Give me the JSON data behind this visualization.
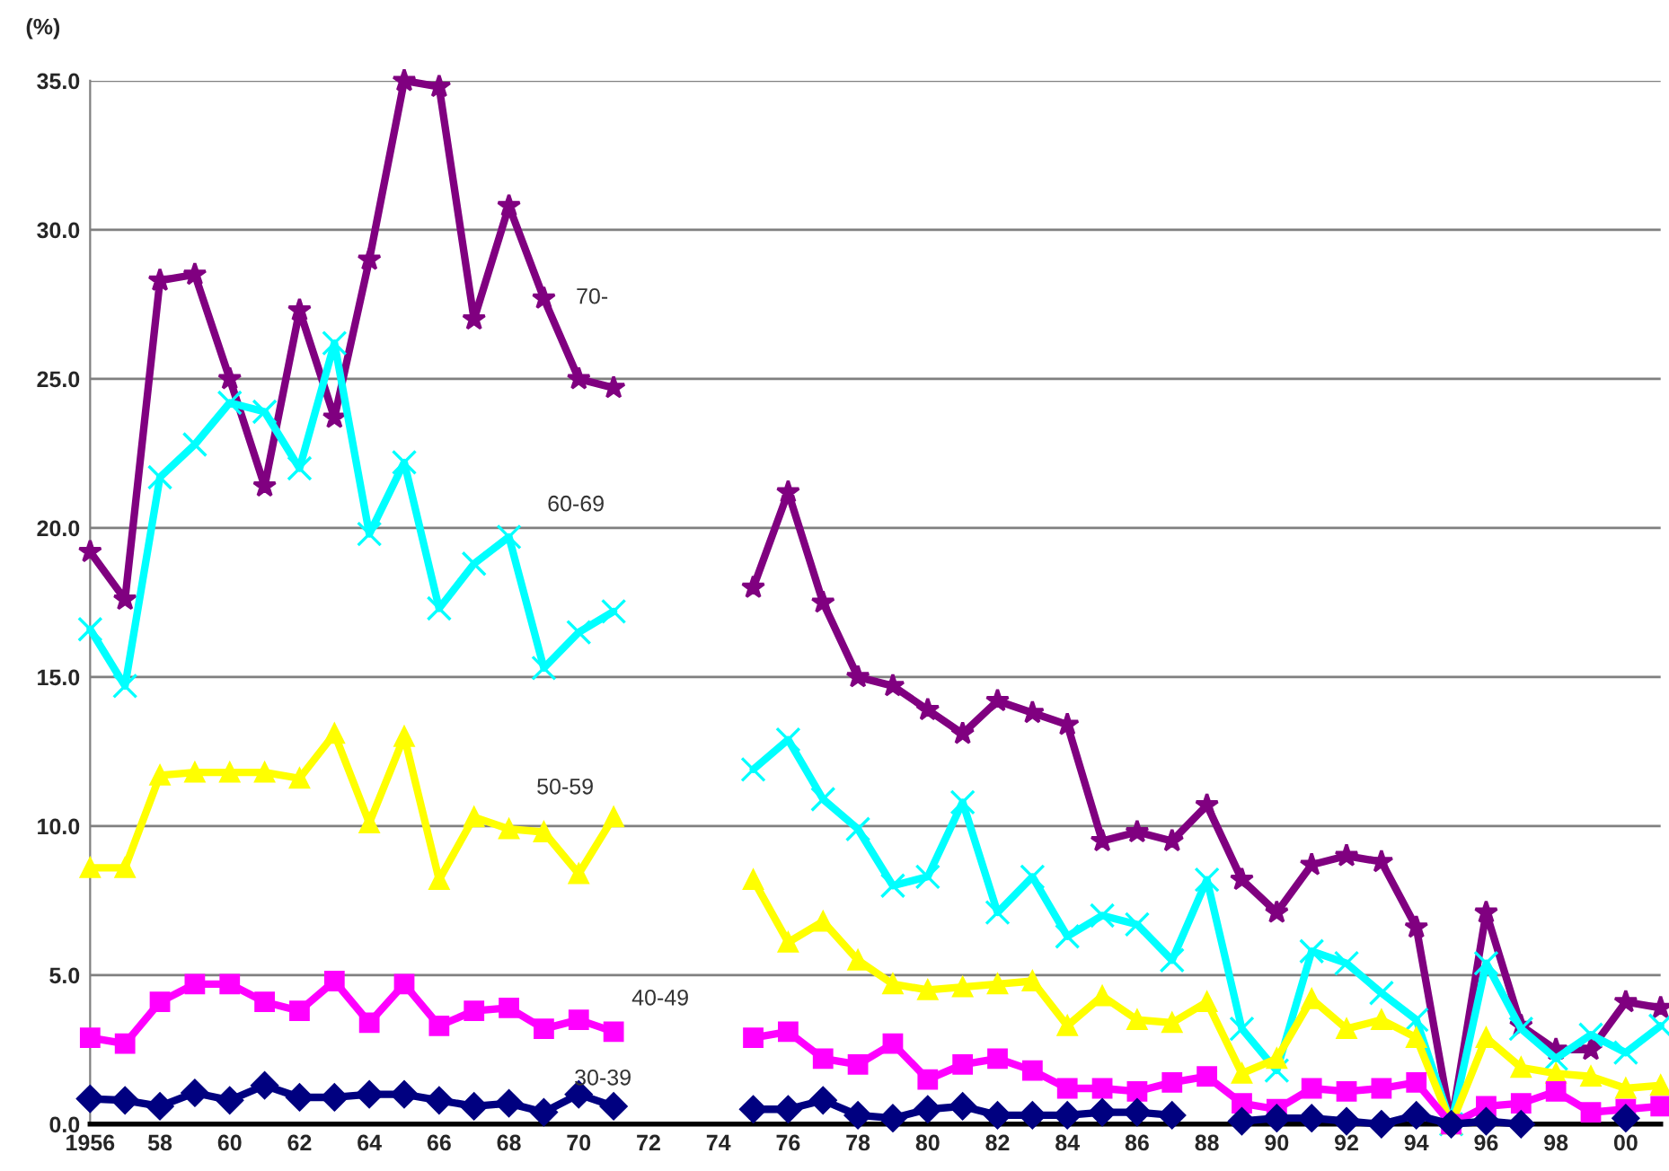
{
  "chart_data": {
    "type": "line",
    "ylabel": "(%)",
    "x": [
      1956,
      1957,
      1958,
      1959,
      1960,
      1961,
      1962,
      1963,
      1964,
      1965,
      1966,
      1967,
      1968,
      1969,
      1970,
      1971,
      1972,
      1973,
      1974,
      1975,
      1976,
      1977,
      1978,
      1979,
      1980,
      1981,
      1982,
      1983,
      1984,
      1985,
      1986,
      1987,
      1988,
      1989,
      1990,
      1991,
      1992,
      1993,
      1994,
      1995,
      1996,
      1997,
      1998,
      1999,
      2000,
      2001
    ],
    "series": [
      {
        "name": "70-",
        "color": "#800080",
        "marker": "star",
        "values": [
          19.2,
          17.6,
          28.3,
          28.5,
          25.0,
          21.4,
          27.3,
          23.7,
          29.0,
          35.0,
          34.8,
          27.0,
          30.8,
          27.7,
          25.0,
          24.7,
          null,
          null,
          null,
          18.0,
          21.2,
          17.5,
          15.0,
          14.7,
          13.9,
          13.1,
          14.2,
          13.8,
          13.4,
          9.5,
          9.8,
          9.5,
          10.7,
          8.2,
          7.1,
          8.7,
          9.0,
          8.8,
          6.6,
          0.0,
          7.1,
          3.3,
          2.5,
          2.5,
          4.1,
          3.9
        ]
      },
      {
        "name": "60-69",
        "color": "#00ffff",
        "marker": "cross",
        "values": [
          16.6,
          14.7,
          21.7,
          22.8,
          24.2,
          23.9,
          22.0,
          26.2,
          19.8,
          22.2,
          17.3,
          18.8,
          19.7,
          15.3,
          16.5,
          17.2,
          null,
          null,
          null,
          11.9,
          12.9,
          10.9,
          9.9,
          8.0,
          8.3,
          10.8,
          7.1,
          8.3,
          6.3,
          7.0,
          6.7,
          5.5,
          8.2,
          3.2,
          1.8,
          5.8,
          5.4,
          4.4,
          3.5,
          0.0,
          5.4,
          3.2,
          2.2,
          3.0,
          2.4,
          3.3
        ]
      },
      {
        "name": "50-59",
        "color": "#ffff00",
        "marker": "triangle",
        "values": [
          8.6,
          8.6,
          11.7,
          11.8,
          11.8,
          11.8,
          11.6,
          13.1,
          10.1,
          13.0,
          8.2,
          10.3,
          9.9,
          9.8,
          8.4,
          10.3,
          null,
          null,
          null,
          8.2,
          6.1,
          6.8,
          5.5,
          4.7,
          4.5,
          4.6,
          4.7,
          4.8,
          3.3,
          4.3,
          3.5,
          3.4,
          4.1,
          1.7,
          2.2,
          4.2,
          3.2,
          3.5,
          2.9,
          0.0,
          2.9,
          1.9,
          1.7,
          1.6,
          1.2,
          1.3
        ]
      },
      {
        "name": "40-49",
        "color": "#ff00ff",
        "marker": "square",
        "values": [
          2.9,
          2.7,
          4.1,
          4.7,
          4.7,
          4.1,
          3.8,
          4.8,
          3.4,
          4.7,
          3.3,
          3.8,
          3.9,
          3.2,
          3.5,
          3.1,
          null,
          null,
          null,
          2.9,
          3.1,
          2.2,
          2.0,
          2.7,
          1.5,
          2.0,
          2.2,
          1.8,
          1.2,
          1.2,
          1.1,
          1.4,
          1.6,
          0.7,
          0.5,
          1.2,
          1.1,
          1.2,
          1.4,
          0.0,
          0.6,
          0.7,
          1.1,
          0.4,
          0.5,
          0.6
        ]
      },
      {
        "name": "30-39",
        "color": "#000080",
        "marker": "diamond",
        "values": [
          0.85,
          0.8,
          0.6,
          1.05,
          0.8,
          1.3,
          0.9,
          0.9,
          1.0,
          1.0,
          0.8,
          0.6,
          0.7,
          0.4,
          1.0,
          0.6,
          null,
          null,
          null,
          0.5,
          0.5,
          0.8,
          0.3,
          0.2,
          0.5,
          0.6,
          0.3,
          0.3,
          0.3,
          0.4,
          0.4,
          0.3,
          null,
          0.1,
          0.2,
          0.2,
          0.1,
          0.0,
          0.3,
          0.0,
          0.1,
          0.0,
          null,
          null,
          0.2,
          null
        ]
      }
    ],
    "xlim": [
      1956,
      2001
    ],
    "xticks": [
      {
        "value": 1956,
        "label": "1956"
      },
      {
        "value": 1958,
        "label": "58"
      },
      {
        "value": 1960,
        "label": "60"
      },
      {
        "value": 1962,
        "label": "62"
      },
      {
        "value": 1964,
        "label": "64"
      },
      {
        "value": 1966,
        "label": "66"
      },
      {
        "value": 1968,
        "label": "68"
      },
      {
        "value": 1970,
        "label": "70"
      },
      {
        "value": 1972,
        "label": "72"
      },
      {
        "value": 1974,
        "label": "74"
      },
      {
        "value": 1976,
        "label": "76"
      },
      {
        "value": 1978,
        "label": "78"
      },
      {
        "value": 1980,
        "label": "80"
      },
      {
        "value": 1982,
        "label": "82"
      },
      {
        "value": 1984,
        "label": "84"
      },
      {
        "value": 1986,
        "label": "86"
      },
      {
        "value": 1988,
        "label": "88"
      },
      {
        "value": 1990,
        "label": "90"
      },
      {
        "value": 1992,
        "label": "92"
      },
      {
        "value": 1994,
        "label": "94"
      },
      {
        "value": 1996,
        "label": "96"
      },
      {
        "value": 1998,
        "label": "98"
      },
      {
        "value": 2000,
        "label": "00"
      }
    ],
    "ylim": [
      0,
      35
    ],
    "yticks": [
      {
        "value": 0,
        "label": "0.0"
      },
      {
        "value": 5,
        "label": "5.0"
      },
      {
        "value": 10,
        "label": "10.0"
      },
      {
        "value": 15,
        "label": "15.0"
      },
      {
        "value": 20,
        "label": "20.0"
      },
      {
        "value": 25,
        "label": "25.0"
      },
      {
        "value": 30,
        "label": "30.0"
      },
      {
        "value": 35,
        "label": "35.0"
      }
    ],
    "grid": "y",
    "line_style": "solid"
  }
}
